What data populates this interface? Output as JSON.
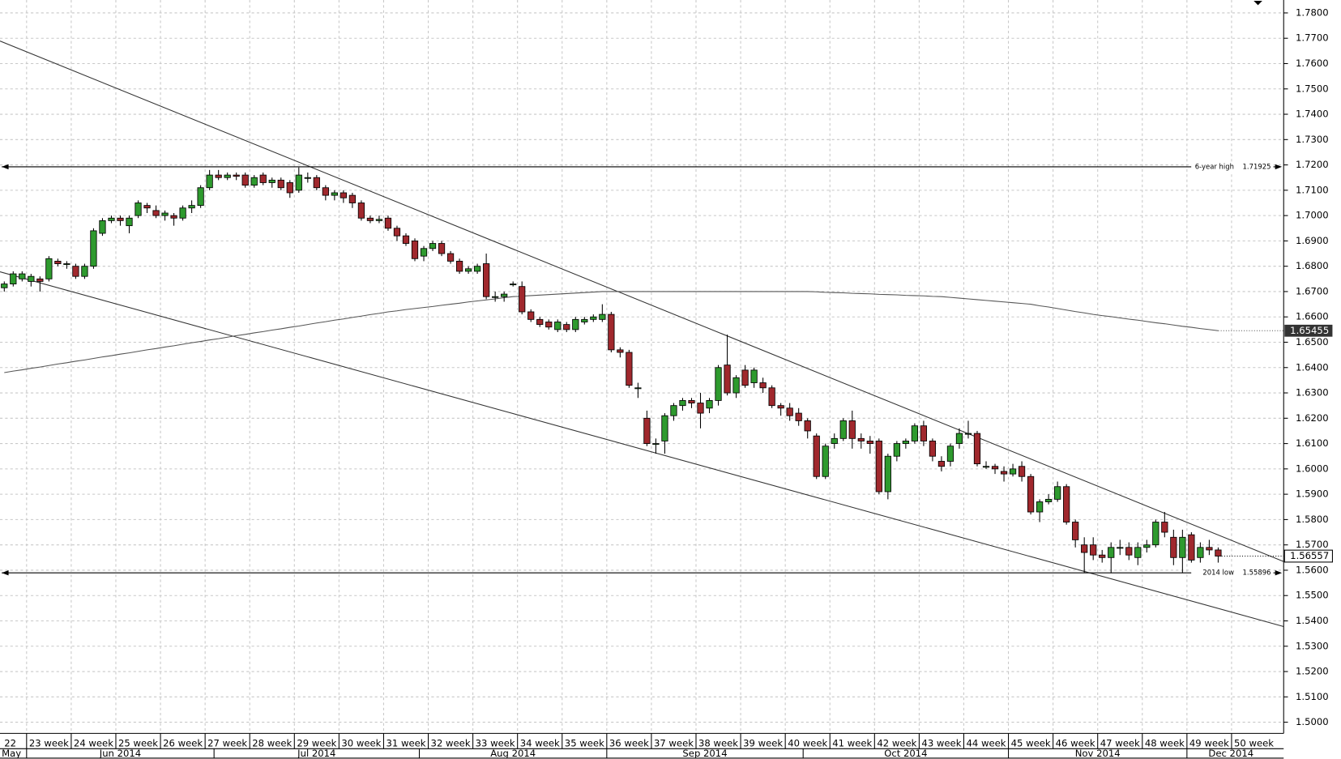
{
  "chart_data": {
    "type": "candlestick",
    "up_color": "#2e9a2e",
    "down_color": "#a0282d",
    "ylim": [
      1.4956,
      1.7851
    ],
    "grid": true,
    "yticks": [
      {
        "value": 1.78,
        "label": "1.7800"
      },
      {
        "value": 1.77,
        "label": "1.7700"
      },
      {
        "value": 1.76,
        "label": "1.7600"
      },
      {
        "value": 1.75,
        "label": "1.7500"
      },
      {
        "value": 1.74,
        "label": "1.7400"
      },
      {
        "value": 1.73,
        "label": "1.7300"
      },
      {
        "value": 1.72,
        "label": "1.7200"
      },
      {
        "value": 1.71,
        "label": "1.7100"
      },
      {
        "value": 1.7,
        "label": "1.7000"
      },
      {
        "value": 1.69,
        "label": "1.6900"
      },
      {
        "value": 1.68,
        "label": "1.6800"
      },
      {
        "value": 1.67,
        "label": "1.6700"
      },
      {
        "value": 1.66,
        "label": "1.6600"
      },
      {
        "value": 1.65,
        "label": "1.6500"
      },
      {
        "value": 1.64,
        "label": "1.6400"
      },
      {
        "value": 1.63,
        "label": "1.6300"
      },
      {
        "value": 1.62,
        "label": "1.6200"
      },
      {
        "value": 1.61,
        "label": "1.6100"
      },
      {
        "value": 1.6,
        "label": "1.6000"
      },
      {
        "value": 1.59,
        "label": "1.5900"
      },
      {
        "value": 1.58,
        "label": "1.5800"
      },
      {
        "value": 1.57,
        "label": "1.5700"
      },
      {
        "value": 1.56,
        "label": "1.5600"
      },
      {
        "value": 1.55,
        "label": "1.5500"
      },
      {
        "value": 1.54,
        "label": "1.5400"
      },
      {
        "value": 1.53,
        "label": "1.5300"
      },
      {
        "value": 1.52,
        "label": "1.5200"
      },
      {
        "value": 1.51,
        "label": "1.5100"
      },
      {
        "value": 1.5,
        "label": "1.5000"
      }
    ],
    "week_labels": [
      "22",
      "23 week",
      "24 week",
      "25 week",
      "26 week",
      "27 week",
      "28 week",
      "29 week",
      "30 week",
      "31 week",
      "32 week",
      "33 week",
      "34 week",
      "35 week",
      "36 week",
      "37 week",
      "38 week",
      "39 week",
      "40 week",
      "41 week",
      "42 week",
      "43 week",
      "44 week",
      "45 week",
      "46 week",
      "47 week",
      "48 week",
      "49 week",
      "50 week"
    ],
    "month_labels": [
      "May",
      "Jun 2014",
      "Jul 2014",
      "Aug 2014",
      "Sep 2014",
      "Oct 2014",
      "Nov 2014",
      "Dec 2014"
    ],
    "levels": [
      {
        "label": "6-year high",
        "value": 1.71925
      },
      {
        "label": "2014 low",
        "value": 1.55896
      }
    ],
    "ma": {
      "color": "#555555",
      "values": [
        1.638,
        1.6386,
        1.6391,
        1.6397,
        1.6402,
        1.6408,
        1.6414,
        1.6419,
        1.6425,
        1.643,
        1.6436,
        1.6442,
        1.6447,
        1.6453,
        1.6458,
        1.6464,
        1.647,
        1.6475,
        1.6481,
        1.6486,
        1.6492,
        1.6498,
        1.6503,
        1.6509,
        1.6514,
        1.652,
        1.6526,
        1.6531,
        1.6537,
        1.6542,
        1.6548,
        1.6553,
        1.6559,
        1.6564,
        1.657,
        1.6576,
        1.6581,
        1.6587,
        1.6592,
        1.6598,
        1.6603,
        1.6609,
        1.6614,
        1.662,
        1.6624,
        1.6629,
        1.6633,
        1.6637,
        1.6641,
        1.6646,
        1.665,
        1.6654,
        1.6659,
        1.6663,
        1.6667,
        1.6671,
        1.6676,
        1.668,
        1.6682,
        1.6684,
        1.6686,
        1.6688,
        1.669,
        1.6692,
        1.6694,
        1.6696,
        1.6698,
        1.67,
        1.67,
        1.67,
        1.67,
        1.67,
        1.67,
        1.67,
        1.67,
        1.67,
        1.67,
        1.67,
        1.67,
        1.67,
        1.67,
        1.67,
        1.67,
        1.67,
        1.67,
        1.67,
        1.67,
        1.67,
        1.67,
        1.67,
        1.67,
        1.6699,
        1.6697,
        1.6696,
        1.6695,
        1.6693,
        1.6692,
        1.6691,
        1.6689,
        1.6688,
        1.6687,
        1.6685,
        1.6684,
        1.6683,
        1.6681,
        1.668,
        1.6677,
        1.6674,
        1.6671,
        1.6668,
        1.6665,
        1.6662,
        1.6659,
        1.6656,
        1.6653,
        1.665,
        1.6644,
        1.6639,
        1.6633,
        1.6627,
        1.6621,
        1.6616,
        1.661,
        1.6605,
        1.6601,
        1.6596,
        1.6591,
        1.6587,
        1.6582,
        1.6577,
        1.6573,
        1.6568,
        1.6563,
        1.6559,
        1.6554,
        1.655,
        1.65455
      ]
    },
    "candles": [
      [
        1.6715,
        1.674,
        1.67,
        1.673
      ],
      [
        1.673,
        1.678,
        1.672,
        1.677
      ],
      [
        1.675,
        1.678,
        1.674,
        1.677
      ],
      [
        1.674,
        1.677,
        1.672,
        1.676
      ],
      [
        1.675,
        1.676,
        1.67,
        1.674
      ],
      [
        1.675,
        1.684,
        1.674,
        1.683
      ],
      [
        1.682,
        1.683,
        1.68,
        1.681
      ],
      [
        1.681,
        1.682,
        1.679,
        1.681
      ],
      [
        1.68,
        1.681,
        1.675,
        1.676
      ],
      [
        1.676,
        1.681,
        1.675,
        1.68
      ],
      [
        1.68,
        1.695,
        1.679,
        1.694
      ],
      [
        1.693,
        1.699,
        1.692,
        1.698
      ],
      [
        1.698,
        1.7,
        1.697,
        1.699
      ],
      [
        1.699,
        1.7,
        1.696,
        1.698
      ],
      [
        1.696,
        1.7,
        1.693,
        1.699
      ],
      [
        1.7,
        1.706,
        1.699,
        1.705
      ],
      [
        1.704,
        1.705,
        1.701,
        1.703
      ],
      [
        1.702,
        1.704,
        1.699,
        1.7
      ],
      [
        1.7,
        1.702,
        1.698,
        1.701
      ],
      [
        1.7,
        1.701,
        1.696,
        1.699
      ],
      [
        1.699,
        1.704,
        1.698,
        1.703
      ],
      [
        1.703,
        1.706,
        1.701,
        1.704
      ],
      [
        1.704,
        1.712,
        1.703,
        1.711
      ],
      [
        1.711,
        1.718,
        1.71,
        1.716
      ],
      [
        1.716,
        1.718,
        1.714,
        1.715
      ],
      [
        1.715,
        1.717,
        1.714,
        1.716
      ],
      [
        1.716,
        1.717,
        1.714,
        1.7155
      ],
      [
        1.716,
        1.717,
        1.711,
        1.712
      ],
      [
        1.712,
        1.716,
        1.711,
        1.715
      ],
      [
        1.716,
        1.717,
        1.712,
        1.713
      ],
      [
        1.713,
        1.715,
        1.711,
        1.714
      ],
      [
        1.714,
        1.715,
        1.71,
        1.711
      ],
      [
        1.713,
        1.714,
        1.707,
        1.709
      ],
      [
        1.71,
        1.719,
        1.709,
        1.716
      ],
      [
        1.715,
        1.717,
        1.713,
        1.715
      ],
      [
        1.715,
        1.716,
        1.71,
        1.711
      ],
      [
        1.711,
        1.712,
        1.706,
        1.708
      ],
      [
        1.708,
        1.71,
        1.706,
        1.709
      ],
      [
        1.709,
        1.71,
        1.705,
        1.707
      ],
      [
        1.708,
        1.709,
        1.703,
        1.705
      ],
      [
        1.705,
        1.706,
        1.698,
        1.699
      ],
      [
        1.699,
        1.7,
        1.697,
        1.698
      ],
      [
        1.698,
        1.7,
        1.697,
        1.6985
      ],
      [
        1.699,
        1.7,
        1.694,
        1.695
      ],
      [
        1.695,
        1.696,
        1.69,
        1.692
      ],
      [
        1.692,
        1.693,
        1.688,
        1.689
      ],
      [
        1.69,
        1.691,
        1.682,
        1.683
      ],
      [
        1.684,
        1.688,
        1.682,
        1.687
      ],
      [
        1.687,
        1.69,
        1.686,
        1.689
      ],
      [
        1.689,
        1.69,
        1.684,
        1.685
      ],
      [
        1.685,
        1.686,
        1.681,
        1.682
      ],
      [
        1.682,
        1.683,
        1.677,
        1.678
      ],
      [
        1.678,
        1.68,
        1.677,
        1.679
      ],
      [
        1.678,
        1.681,
        1.677,
        1.68
      ],
      [
        1.681,
        1.685,
        1.667,
        1.668
      ],
      [
        1.668,
        1.67,
        1.666,
        1.668
      ],
      [
        1.668,
        1.67,
        1.666,
        1.669
      ],
      [
        1.673,
        1.674,
        1.672,
        1.673
      ],
      [
        1.672,
        1.674,
        1.661,
        1.662
      ],
      [
        1.662,
        1.663,
        1.658,
        1.659
      ],
      [
        1.659,
        1.66,
        1.656,
        1.657
      ],
      [
        1.658,
        1.659,
        1.655,
        1.656
      ],
      [
        1.655,
        1.659,
        1.654,
        1.658
      ],
      [
        1.657,
        1.658,
        1.654,
        1.655
      ],
      [
        1.655,
        1.66,
        1.654,
        1.659
      ],
      [
        1.658,
        1.66,
        1.657,
        1.659
      ],
      [
        1.659,
        1.661,
        1.658,
        1.66
      ],
      [
        1.659,
        1.665,
        1.658,
        1.661
      ],
      [
        1.661,
        1.662,
        1.646,
        1.647
      ],
      [
        1.647,
        1.648,
        1.644,
        1.646
      ],
      [
        1.646,
        1.647,
        1.632,
        1.633
      ],
      [
        1.632,
        1.634,
        1.628,
        1.632
      ],
      [
        1.62,
        1.623,
        1.609,
        1.61
      ],
      [
        1.61,
        1.612,
        1.606,
        1.61
      ],
      [
        1.611,
        1.622,
        1.606,
        1.621
      ],
      [
        1.621,
        1.626,
        1.619,
        1.625
      ],
      [
        1.625,
        1.628,
        1.623,
        1.627
      ],
      [
        1.627,
        1.628,
        1.624,
        1.626
      ],
      [
        1.626,
        1.63,
        1.616,
        1.622
      ],
      [
        1.624,
        1.628,
        1.622,
        1.627
      ],
      [
        1.627,
        1.641,
        1.625,
        1.64
      ],
      [
        1.641,
        1.653,
        1.629,
        1.63
      ],
      [
        1.63,
        1.637,
        1.628,
        1.636
      ],
      [
        1.639,
        1.641,
        1.632,
        1.633
      ],
      [
        1.634,
        1.64,
        1.632,
        1.639
      ],
      [
        1.634,
        1.636,
        1.63,
        1.632
      ],
      [
        1.632,
        1.633,
        1.624,
        1.625
      ],
      [
        1.625,
        1.626,
        1.621,
        1.624
      ],
      [
        1.624,
        1.626,
        1.619,
        1.621
      ],
      [
        1.622,
        1.624,
        1.617,
        1.619
      ],
      [
        1.619,
        1.62,
        1.612,
        1.615
      ],
      [
        1.613,
        1.614,
        1.596,
        1.597
      ],
      [
        1.597,
        1.61,
        1.596,
        1.609
      ],
      [
        1.61,
        1.614,
        1.608,
        1.612
      ],
      [
        1.612,
        1.62,
        1.611,
        1.619
      ],
      [
        1.619,
        1.623,
        1.608,
        1.612
      ],
      [
        1.612,
        1.614,
        1.608,
        1.611
      ],
      [
        1.611,
        1.613,
        1.606,
        1.61
      ],
      [
        1.611,
        1.612,
        1.59,
        1.591
      ],
      [
        1.591,
        1.606,
        1.588,
        1.605
      ],
      [
        1.605,
        1.611,
        1.603,
        1.61
      ],
      [
        1.61,
        1.612,
        1.608,
        1.611
      ],
      [
        1.611,
        1.618,
        1.61,
        1.617
      ],
      [
        1.617,
        1.619,
        1.609,
        1.611
      ],
      [
        1.611,
        1.612,
        1.603,
        1.605
      ],
      [
        1.603,
        1.605,
        1.599,
        1.601
      ],
      [
        1.603,
        1.61,
        1.601,
        1.609
      ],
      [
        1.61,
        1.616,
        1.608,
        1.614
      ],
      [
        1.614,
        1.619,
        1.612,
        1.614
      ],
      [
        1.614,
        1.615,
        1.601,
        1.602
      ],
      [
        1.601,
        1.603,
        1.6,
        1.601
      ],
      [
        1.601,
        1.602,
        1.598,
        1.6
      ],
      [
        1.599,
        1.601,
        1.595,
        1.598
      ],
      [
        1.598,
        1.602,
        1.597,
        1.6
      ],
      [
        1.601,
        1.603,
        1.595,
        1.597
      ],
      [
        1.597,
        1.598,
        1.582,
        1.583
      ],
      [
        1.583,
        1.588,
        1.579,
        1.587
      ],
      [
        1.587,
        1.59,
        1.586,
        1.588
      ],
      [
        1.588,
        1.595,
        1.587,
        1.593
      ],
      [
        1.593,
        1.594,
        1.578,
        1.579
      ],
      [
        1.579,
        1.58,
        1.569,
        1.572
      ],
      [
        1.57,
        1.573,
        1.559,
        1.567
      ],
      [
        1.57,
        1.573,
        1.564,
        1.566
      ],
      [
        1.566,
        1.568,
        1.563,
        1.565
      ],
      [
        1.565,
        1.571,
        1.559,
        1.569
      ],
      [
        1.569,
        1.572,
        1.566,
        1.569
      ],
      [
        1.569,
        1.571,
        1.564,
        1.566
      ],
      [
        1.565,
        1.571,
        1.562,
        1.569
      ],
      [
        1.569,
        1.572,
        1.567,
        1.57
      ],
      [
        1.57,
        1.58,
        1.569,
        1.579
      ],
      [
        1.579,
        1.583,
        1.573,
        1.575
      ],
      [
        1.573,
        1.576,
        1.562,
        1.565
      ],
      [
        1.565,
        1.576,
        1.559,
        1.573
      ],
      [
        1.574,
        1.575,
        1.563,
        1.564
      ],
      [
        1.565,
        1.571,
        1.563,
        1.569
      ],
      [
        1.569,
        1.572,
        1.566,
        1.568
      ],
      [
        1.568,
        1.569,
        1.563,
        1.56557
      ]
    ]
  }
}
